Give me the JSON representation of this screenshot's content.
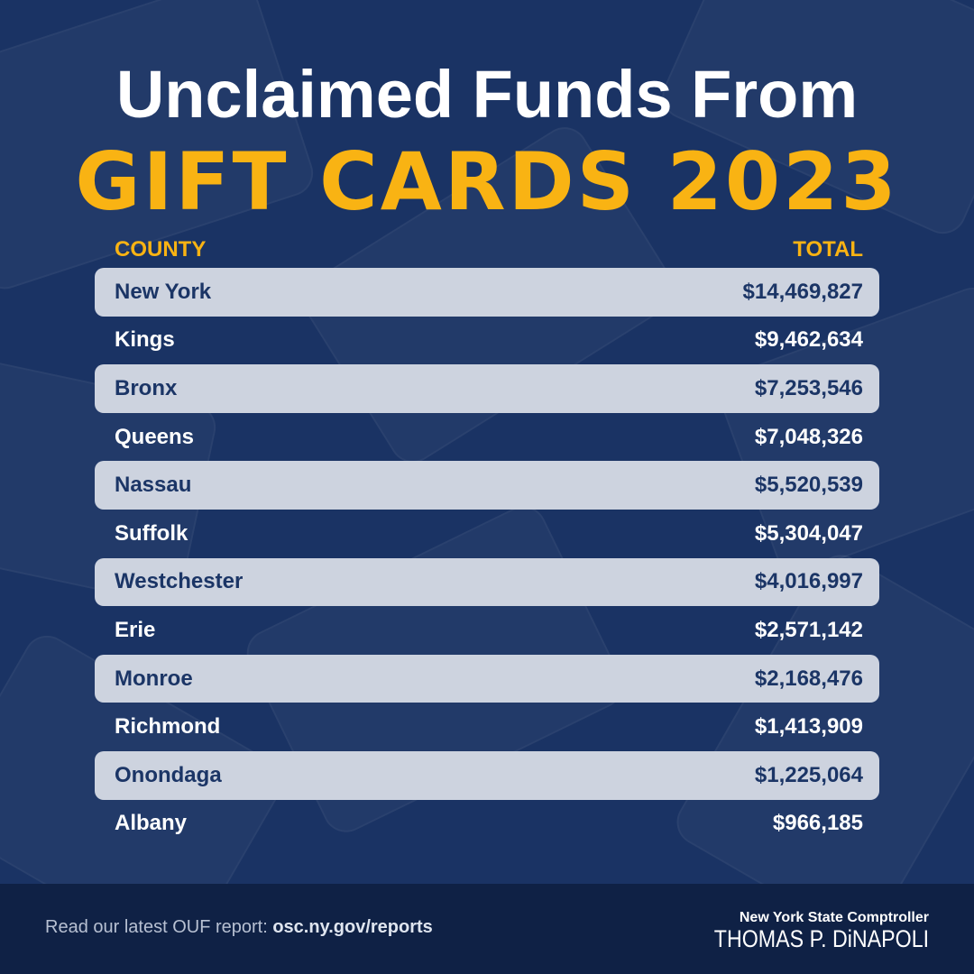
{
  "title": {
    "line1": "Unclaimed Funds From",
    "line2": "GIFT CARDS 2023"
  },
  "columns": {
    "county": "COUNTY",
    "total": "TOTAL"
  },
  "rows": [
    {
      "county": "New York",
      "total": "$14,469,827"
    },
    {
      "county": "Kings",
      "total": "$9,462,634"
    },
    {
      "county": "Bronx",
      "total": "$7,253,546"
    },
    {
      "county": "Queens",
      "total": "$7,048,326"
    },
    {
      "county": "Nassau",
      "total": "$5,520,539"
    },
    {
      "county": "Suffolk",
      "total": "$5,304,047"
    },
    {
      "county": "Westchester",
      "total": "$4,016,997"
    },
    {
      "county": "Erie",
      "total": "$2,571,142"
    },
    {
      "county": "Monroe",
      "total": "$2,168,476"
    },
    {
      "county": "Richmond",
      "total": "$1,413,909"
    },
    {
      "county": "Onondaga",
      "total": "$1,225,064"
    },
    {
      "county": "Albany",
      "total": "$966,185"
    }
  ],
  "footer": {
    "prompt": "Read our latest OUF report: ",
    "link": "osc.ny.gov/reports",
    "brand_line1": "New York State Comptroller",
    "brand_line2": "THOMAS P. DiNAPOLI"
  },
  "colors": {
    "background": "#1a3364",
    "accent": "#f9b313",
    "stripe": "#cdd3df",
    "footer": "#0f2145"
  }
}
